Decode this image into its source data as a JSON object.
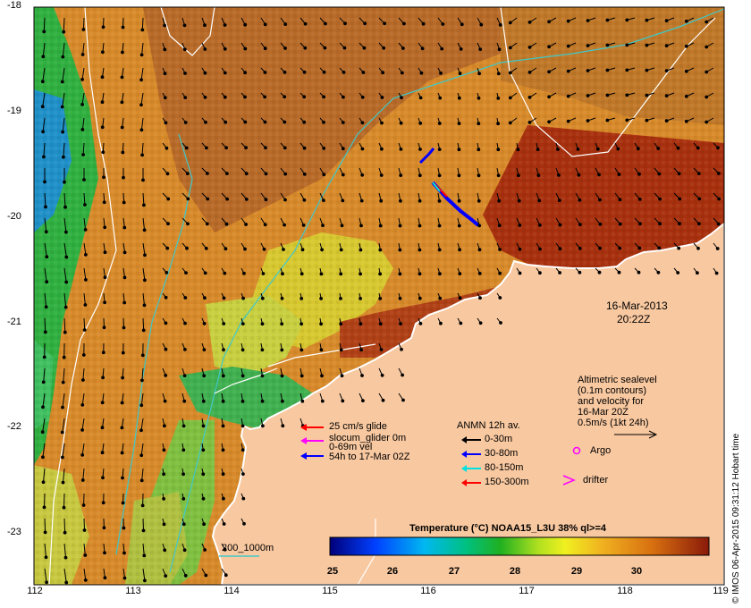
{
  "map": {
    "date": "16-Mar-2013",
    "time": "20:22Z",
    "lon_ticks": [
      "112",
      "113",
      "114",
      "115",
      "116",
      "117",
      "118",
      "119"
    ],
    "lat_ticks": [
      "-18",
      "-19",
      "-20",
      "-21",
      "-22",
      "-23"
    ],
    "contour_label": "200_1000m",
    "credit": "© IMOS 06-Apr-2015 09:31:12 Hobart time",
    "colors": {
      "land": "#f8c8a0",
      "warm": "#a52a10",
      "orange": "#d98c20",
      "green": "#3cb43c",
      "contour": "#40c8c8"
    }
  },
  "glider_legend": {
    "line1": "25 cm/s glide",
    "line2": "slocum_glider 0m",
    "line3": "0-69m vel",
    "line4": "54h to 17-Mar 02Z"
  },
  "anmn_legend": {
    "title": "ANMN 12h av.",
    "items": [
      {
        "label": "0-30m",
        "color": "#000000"
      },
      {
        "label": "30-80m",
        "color": "#0000ff"
      },
      {
        "label": "80-150m",
        "color": "#00e0e0"
      },
      {
        "label": "150-300m",
        "color": "#ff0000"
      }
    ]
  },
  "altimetry_legend": {
    "line1": "Altimetric sealevel",
    "line2": "(0.1m contours)",
    "line3": "and velocity for",
    "line4": "16-Mar 20Z",
    "line5": "0.5m/s (1kt 24h)"
  },
  "markers": {
    "argo": "Argo",
    "drifter": "drifter"
  },
  "colorbar": {
    "title": "Temperature (°C) NOAA15_L3U 38% ql>=4",
    "ticks": [
      "25",
      "26",
      "27",
      "28",
      "29",
      "30"
    ]
  }
}
